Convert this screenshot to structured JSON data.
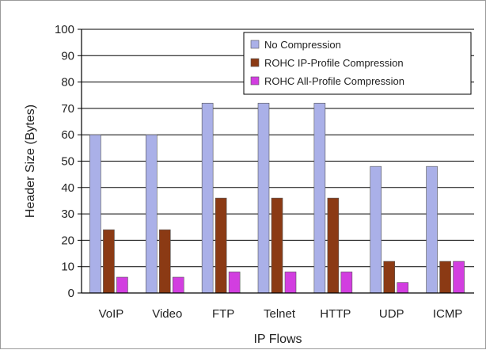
{
  "chart_data": {
    "type": "bar",
    "xlabel": "IP Flows",
    "ylabel": "Header Size (Bytes)",
    "ylim": [
      0,
      100
    ],
    "yticks": [
      0,
      10,
      20,
      30,
      40,
      50,
      60,
      70,
      80,
      90,
      100
    ],
    "grid": "horizontal",
    "legend_position": "top-right",
    "categories": [
      "VoIP",
      "Video",
      "FTP",
      "Telnet",
      "HTTP",
      "UDP",
      "ICMP"
    ],
    "series": [
      {
        "name": "No Compression",
        "color": "#aab0e8",
        "values": [
          60,
          60,
          72,
          72,
          72,
          48,
          48
        ]
      },
      {
        "name": "ROHC IP-Profile Compression",
        "color": "#8b3a14",
        "values": [
          24,
          24,
          36,
          36,
          36,
          12,
          12
        ]
      },
      {
        "name": "ROHC All-Profile Compression",
        "color": "#d23ee0",
        "values": [
          6,
          6,
          8,
          8,
          8,
          4,
          12
        ]
      }
    ]
  }
}
